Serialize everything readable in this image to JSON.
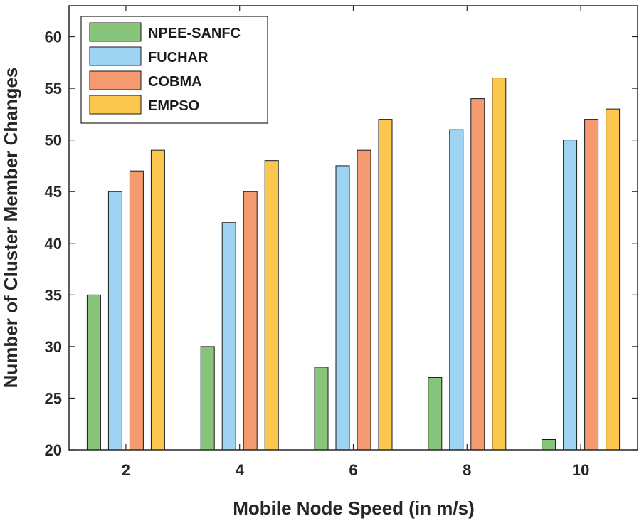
{
  "chart_data": {
    "type": "bar",
    "title": "",
    "xlabel": "Mobile Node Speed (in m/s)",
    "ylabel": "Number of Cluster Member Changes",
    "categories": [
      "2",
      "4",
      "6",
      "8",
      "10"
    ],
    "ylim": [
      20,
      63
    ],
    "yticks": [
      20,
      25,
      30,
      35,
      40,
      45,
      50,
      55,
      60
    ],
    "grid": false,
    "legend_position": "top-left",
    "series": [
      {
        "name": "NPEE-SANFC",
        "color": "#86c57a",
        "values": [
          35,
          30,
          28,
          27,
          21
        ]
      },
      {
        "name": "FUCHAR",
        "color": "#9fd3f2",
        "values": [
          45,
          42,
          47.5,
          51,
          50
        ]
      },
      {
        "name": "COBMA",
        "color": "#f59a70",
        "values": [
          47,
          45,
          49,
          54,
          52
        ]
      },
      {
        "name": "EMPSO",
        "color": "#fcc74f",
        "values": [
          49,
          48,
          52,
          56,
          53
        ]
      }
    ]
  }
}
